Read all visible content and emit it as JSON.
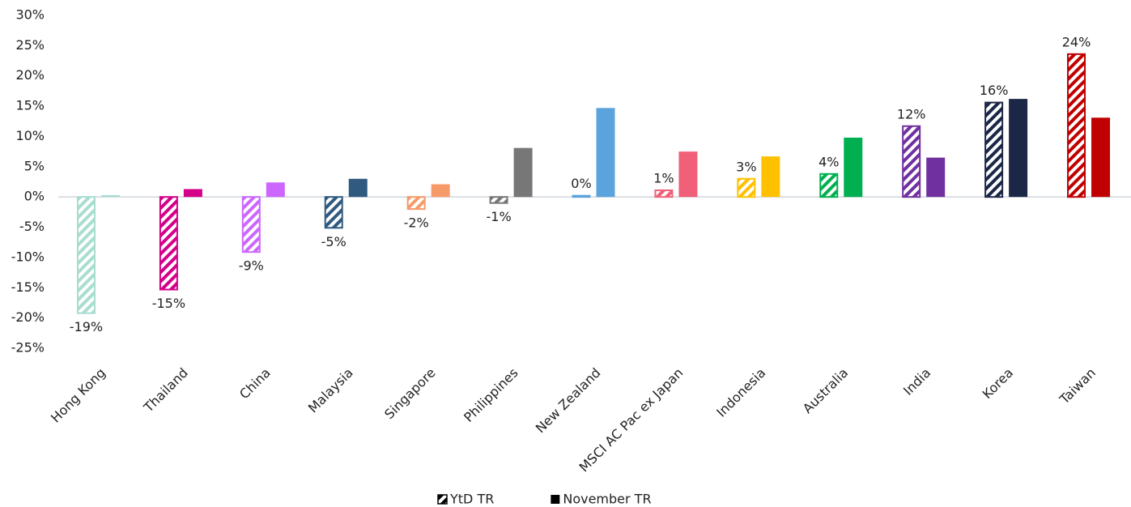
{
  "chart_data": {
    "type": "bar",
    "categories": [
      "Hong Kong",
      "Thailand",
      "China",
      "Malaysia",
      "Singapore",
      "Philippines",
      "New Zealand",
      "MSCI AC Pac ex Japan",
      "Indonesia",
      "Australia",
      "India",
      "Korea",
      "Taiwan"
    ],
    "colors": [
      "#a8ddd0",
      "#d4008a",
      "#cc66ff",
      "#305a80",
      "#f79a6a",
      "#777777",
      "#5ba3dc",
      "#f06078",
      "#ffc000",
      "#00b050",
      "#7030a0",
      "#1c2747",
      "#c00000"
    ],
    "series": [
      {
        "name": "YtD TR",
        "color": "#000000",
        "pattern": "hatch",
        "values": [
          -19.2,
          -15.3,
          -9.1,
          -5.1,
          -2.0,
          -1.0,
          0.2,
          1.1,
          3.0,
          3.8,
          11.7,
          15.6,
          23.6
        ],
        "value_labels": [
          "-19%",
          "-15%",
          "-9%",
          "-5%",
          "-2%",
          "-1%",
          "0%",
          "1%",
          "3%",
          "4%",
          "12%",
          "16%",
          "24%"
        ]
      },
      {
        "name": "November TR",
        "color": "#000000",
        "pattern": "solid",
        "values": [
          0.3,
          1.3,
          2.4,
          3.0,
          2.1,
          8.1,
          14.7,
          7.5,
          6.7,
          9.8,
          6.5,
          16.2,
          13.1
        ]
      }
    ],
    "ylim": [
      -25,
      30
    ],
    "yticks": [
      {
        "value": -25,
        "label": "-25%"
      },
      {
        "value": -20,
        "label": "-20%"
      },
      {
        "value": -15,
        "label": "-15%"
      },
      {
        "value": -10,
        "label": "-10%"
      },
      {
        "value": -5,
        "label": "-5%"
      },
      {
        "value": 0,
        "label": "0%"
      },
      {
        "value": 5,
        "label": "5%"
      },
      {
        "value": 10,
        "label": "10%"
      },
      {
        "value": 15,
        "label": "15%"
      },
      {
        "value": 20,
        "label": "20%"
      },
      {
        "value": 25,
        "label": "25%"
      },
      {
        "value": 30,
        "label": "30%"
      }
    ],
    "grid": false,
    "legend": "bottom"
  }
}
